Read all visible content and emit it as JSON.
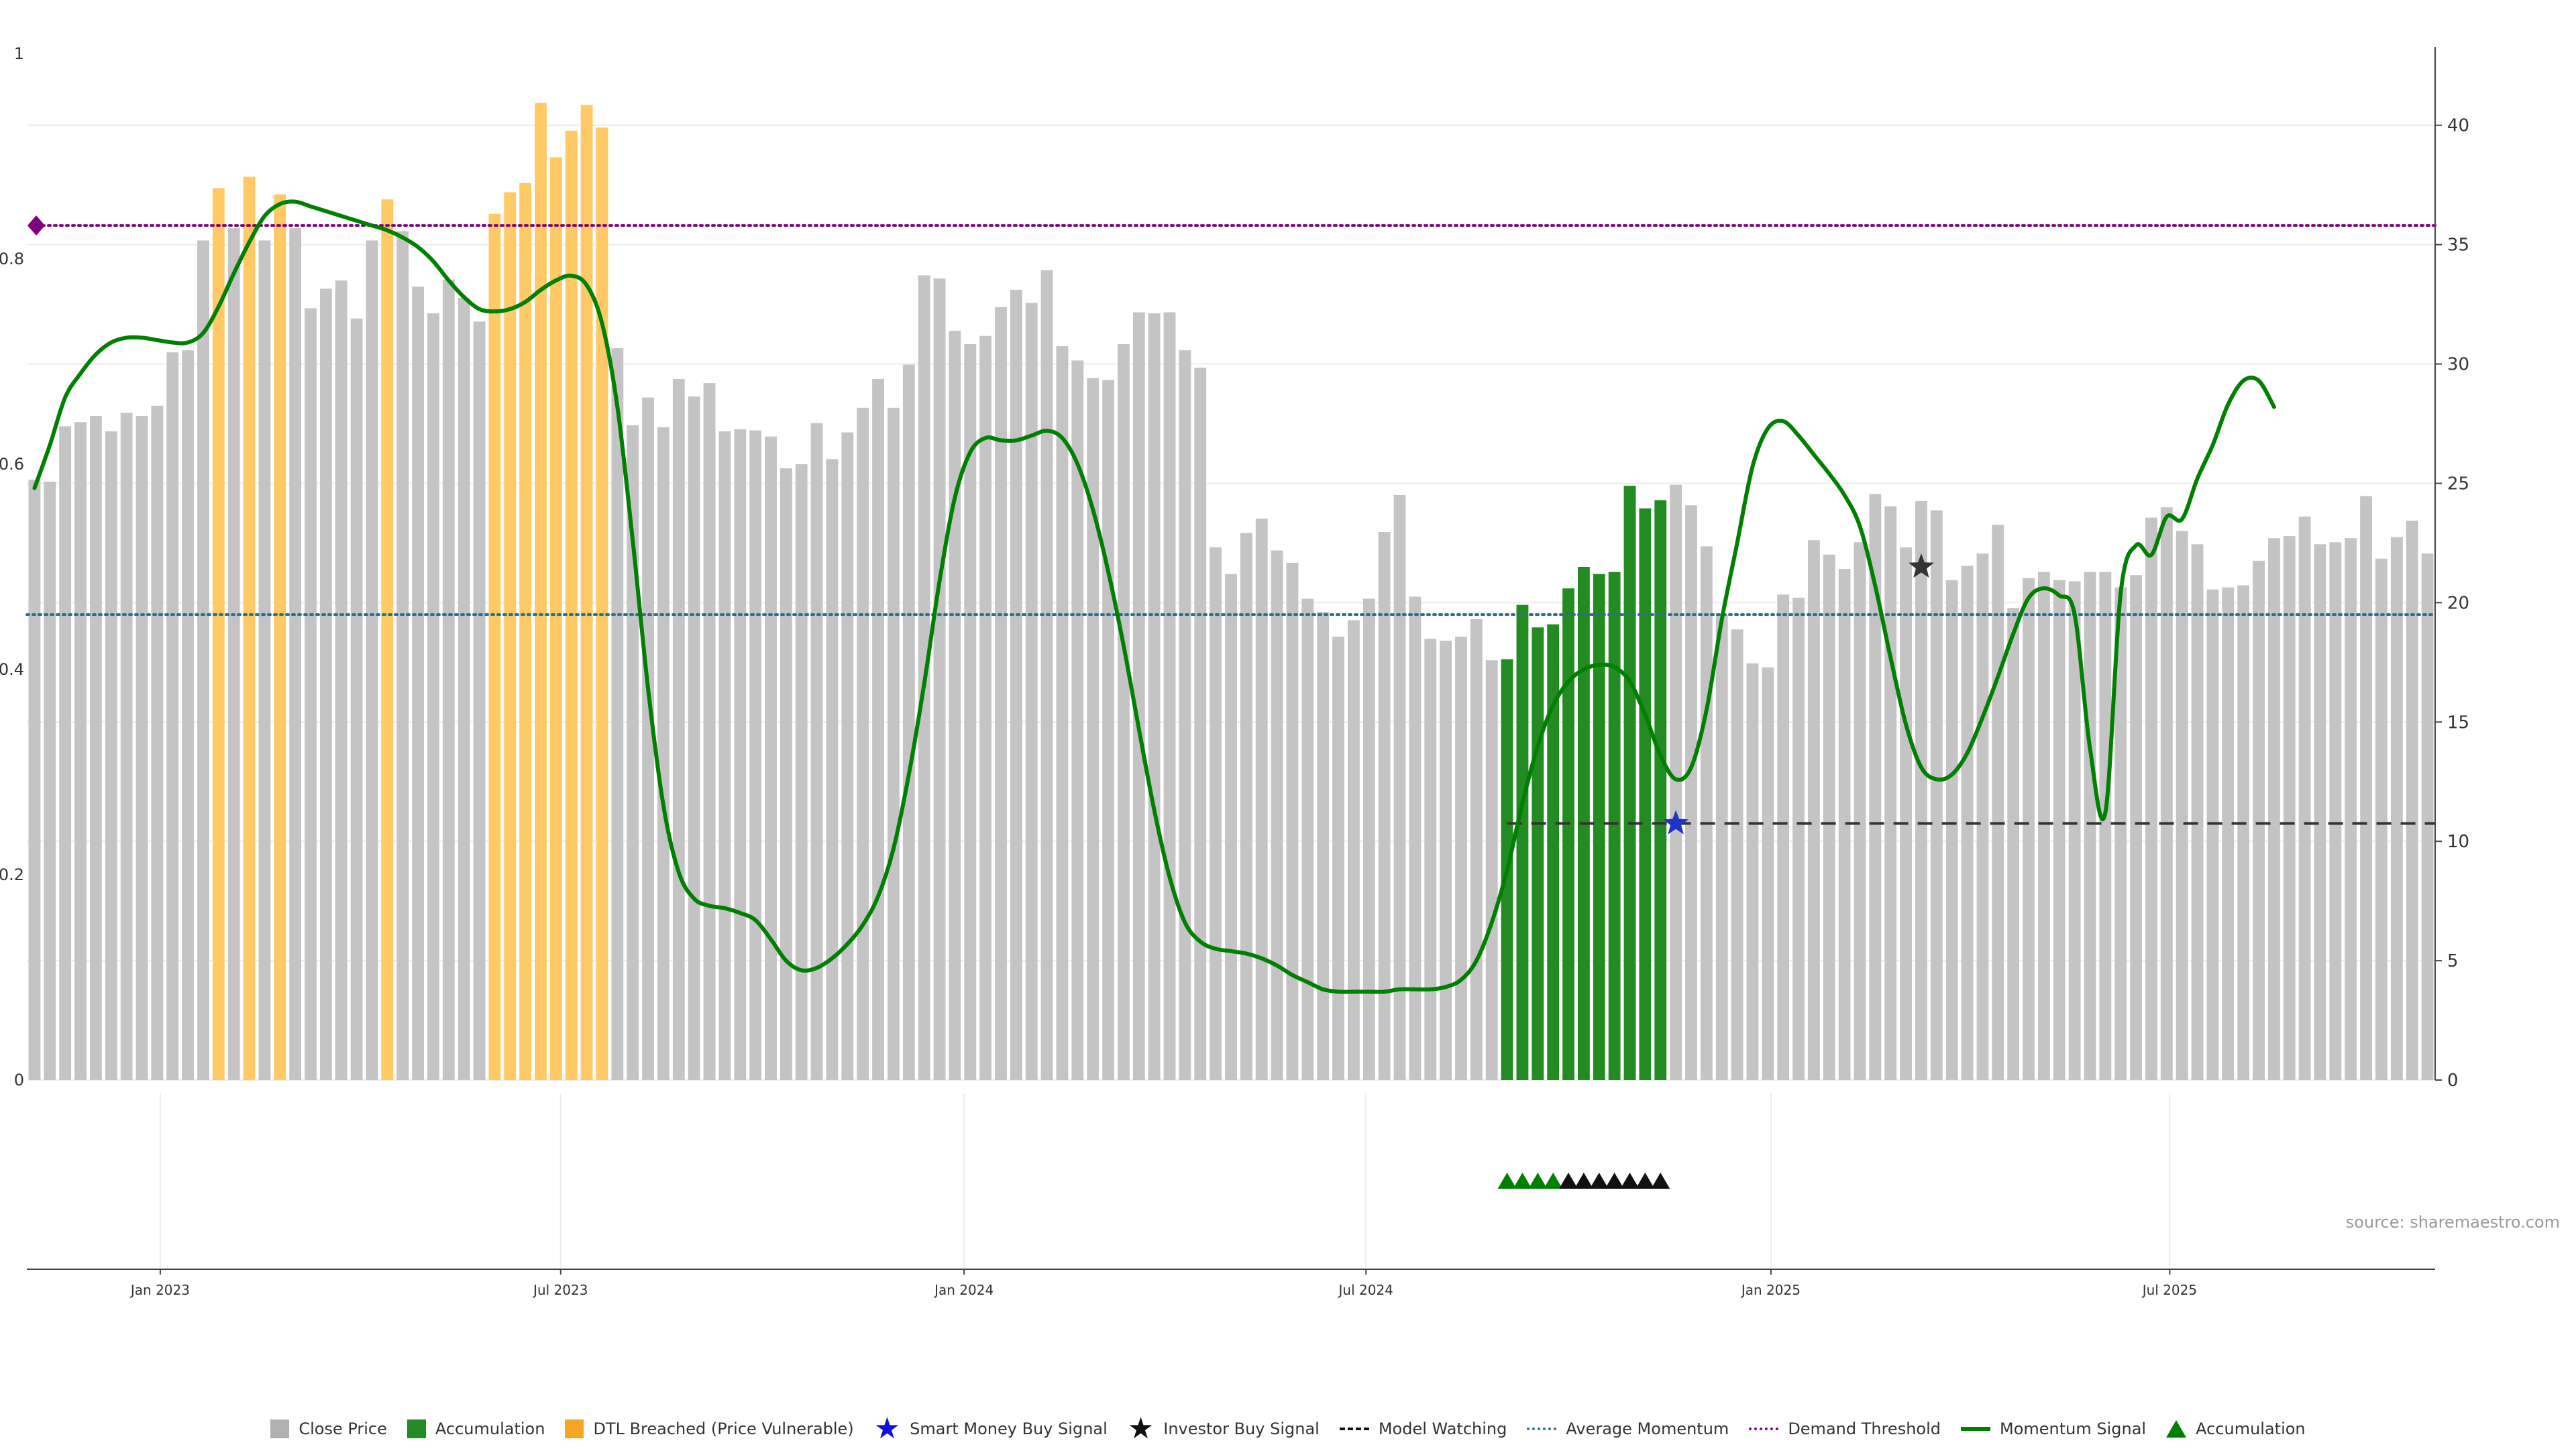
{
  "source_note": "source: sharemaestro.com",
  "colors": {
    "close_price": "#c4c4c4",
    "accumulation": "#228b22",
    "dtl_breached": "#ffc966",
    "momentum": "#008000",
    "average_momentum": "#2f6e8e",
    "demand_threshold": "#800080",
    "model_watching": "#333333",
    "smart_money": "#1f35c9",
    "investor": "#333333"
  },
  "legend": [
    {
      "key": "close_price",
      "label": "Close Price",
      "swatch": "box",
      "color": "#b0b0b0"
    },
    {
      "key": "accumulation",
      "label": "Accumulation",
      "swatch": "box",
      "color": "#228b22"
    },
    {
      "key": "dtl",
      "label": "DTL Breached (Price Vulnerable)",
      "swatch": "box",
      "color": "#f5a623"
    },
    {
      "key": "smart_money",
      "label": "Smart Money Buy Signal",
      "swatch": "star",
      "color": "#1010e0"
    },
    {
      "key": "investor",
      "label": "Investor Buy Signal",
      "swatch": "star",
      "color": "#111111"
    },
    {
      "key": "model_watching",
      "label": "Model Watching",
      "swatch": "dash",
      "color": "#111111"
    },
    {
      "key": "avg_momentum",
      "label": "Average Momentum",
      "swatch": "dot",
      "color": "#2f6e8e"
    },
    {
      "key": "demand_threshold",
      "label": "Demand Threshold",
      "swatch": "dot",
      "color": "#800080"
    },
    {
      "key": "momentum",
      "label": "Momentum Signal",
      "swatch": "solid",
      "color": "#008000"
    },
    {
      "key": "accumulation_marker",
      "label": "Accumulation",
      "swatch": "triangle",
      "color": "#008000"
    }
  ],
  "chart_data": {
    "type": "bar",
    "title": "",
    "xlabel": "",
    "ylabel": "",
    "x_ticks": [
      "Jan 2023",
      "Jul 2023",
      "Jan 2024",
      "Jul 2024",
      "Jan 2025",
      "Jul 2025"
    ],
    "x_tick_bar_index": [
      8.7,
      34.8,
      61.1,
      87.3,
      113.7,
      139.7
    ],
    "left_axis": {
      "ylim": [
        0,
        1
      ],
      "ticks": [
        "0",
        "0.2",
        "0.4",
        "0.6",
        "0.8",
        "1"
      ],
      "tick_values": [
        0,
        0.2,
        0.4,
        0.6,
        0.8,
        1
      ]
    },
    "right_axis": {
      "ylim": [
        0,
        43
      ],
      "ticks": [
        "0",
        "5",
        "10",
        "15",
        "20",
        "25",
        "30",
        "35",
        "40"
      ],
      "tick_values": [
        0,
        5,
        10,
        15,
        20,
        25,
        30,
        35,
        40
      ]
    },
    "grid": true,
    "bars": {
      "name": "Close Price",
      "values": [
        0.585,
        0.583,
        0.637,
        0.641,
        0.647,
        0.632,
        0.65,
        0.647,
        0.657,
        0.709,
        0.711,
        0.818,
        0.869,
        0.83,
        0.88,
        0.818,
        0.863,
        0.83,
        0.752,
        0.771,
        0.779,
        0.742,
        0.818,
        0.858,
        0.827,
        0.773,
        0.747,
        0.78,
        0.762,
        0.739,
        0.844,
        0.865,
        0.874,
        0.952,
        0.899,
        0.925,
        0.95,
        0.928,
        0.713,
        0.638,
        0.665,
        0.636,
        0.683,
        0.666,
        0.679,
        0.632,
        0.634,
        0.633,
        0.627,
        0.596,
        0.6,
        0.64,
        0.605,
        0.631,
        0.655,
        0.683,
        0.655,
        0.697,
        0.784,
        0.781,
        0.73,
        0.717,
        0.725,
        0.753,
        0.77,
        0.757,
        0.789,
        0.715,
        0.701,
        0.684,
        0.682,
        0.717,
        0.748,
        0.747,
        0.748,
        0.711,
        0.694,
        0.519,
        0.493,
        0.533,
        0.547,
        0.516,
        0.504,
        0.469,
        0.456,
        0.432,
        0.448,
        0.469,
        0.534,
        0.57,
        0.471,
        0.43,
        0.428,
        0.432,
        0.449,
        0.409,
        0.41,
        0.463,
        0.441,
        0.444,
        0.479,
        0.5,
        0.493,
        0.495,
        0.579,
        0.557,
        0.565,
        0.58,
        0.56,
        0.52,
        0.453,
        0.439,
        0.406,
        0.402,
        0.473,
        0.47,
        0.526,
        0.512,
        0.498,
        0.524,
        0.571,
        0.559,
        0.519,
        0.564,
        0.555,
        0.487,
        0.501,
        0.513,
        0.541,
        0.46,
        0.489,
        0.495,
        0.487,
        0.486,
        0.495,
        0.495,
        0.48,
        0.492,
        0.548,
        0.558,
        0.535,
        0.522,
        0.478,
        0.48,
        0.482,
        0.506,
        0.528,
        0.53,
        0.549,
        0.522,
        0.524,
        0.528,
        0.569,
        0.508,
        0.529,
        0.545,
        0.513
      ],
      "dtl_breached_indices": [
        12,
        14,
        16,
        23,
        30,
        31,
        32,
        33,
        34,
        35,
        36,
        37
      ],
      "accumulation_indices": [
        96,
        97,
        98,
        99,
        100,
        101,
        102,
        103,
        104,
        105,
        106
      ]
    },
    "momentum": {
      "name": "Momentum Signal",
      "axis": "right",
      "values": [
        24.8,
        26.6,
        28.6,
        29.6,
        30.4,
        30.9,
        31.1,
        31.1,
        31.0,
        30.9,
        30.9,
        31.3,
        32.4,
        33.8,
        35.1,
        36.2,
        36.7,
        36.8,
        36.6,
        36.4,
        36.2,
        36.0,
        35.8,
        35.6,
        35.3,
        34.9,
        34.3,
        33.5,
        32.8,
        32.3,
        32.2,
        32.3,
        32.6,
        33.1,
        33.5,
        33.7,
        33.3,
        31.7,
        28.2,
        22.6,
        16.4,
        11.5,
        8.7,
        7.6,
        7.3,
        7.2,
        7.0,
        6.7,
        5.9,
        5.0,
        4.6,
        4.7,
        5.1,
        5.7,
        6.5,
        7.7,
        9.7,
        12.8,
        16.6,
        20.9,
        24.4,
        26.3,
        26.9,
        26.8,
        26.8,
        27.0,
        27.2,
        26.9,
        25.8,
        23.9,
        21.3,
        18.2,
        14.7,
        11.3,
        8.5,
        6.6,
        5.8,
        5.5,
        5.4,
        5.3,
        5.1,
        4.8,
        4.4,
        4.1,
        3.8,
        3.7,
        3.7,
        3.7,
        3.7,
        3.8,
        3.8,
        3.8,
        3.9,
        4.2,
        5.0,
        6.6,
        8.8,
        11.6,
        14.0,
        15.7,
        16.7,
        17.2,
        17.4,
        17.3,
        16.7,
        15.3,
        13.6,
        12.6,
        13.1,
        15.5,
        19.3,
        22.5,
        25.7,
        27.3,
        27.6,
        27.0,
        26.2,
        25.4,
        24.5,
        23.2,
        20.7,
        17.7,
        14.9,
        13.1,
        12.6,
        12.8,
        13.7,
        15.2,
        16.9,
        18.7,
        20.2,
        20.6,
        20.3,
        19.5,
        13.9,
        11.2,
        20.4,
        22.4,
        22.0,
        23.6,
        23.5,
        25.2,
        26.6,
        28.3,
        29.3,
        29.3,
        28.2
      ]
    },
    "average_momentum": {
      "name": "Average Momentum",
      "axis": "right",
      "value": 19.5
    },
    "demand_threshold": {
      "name": "Demand Threshold",
      "axis": "right",
      "value": 35.8
    },
    "model_watching": {
      "name": "Model Watching",
      "axis": "left",
      "value": 0.25,
      "from_index": 96
    },
    "smart_money_signals": [
      {
        "index": 107,
        "value": 0.25
      }
    ],
    "investor_signals": [
      {
        "index": 123,
        "value": 0.5
      }
    ],
    "accumulation_markers": {
      "green_indices": [
        96,
        97,
        98,
        99
      ],
      "black_indices": [
        100,
        101,
        102,
        103,
        104,
        105,
        106
      ]
    }
  }
}
